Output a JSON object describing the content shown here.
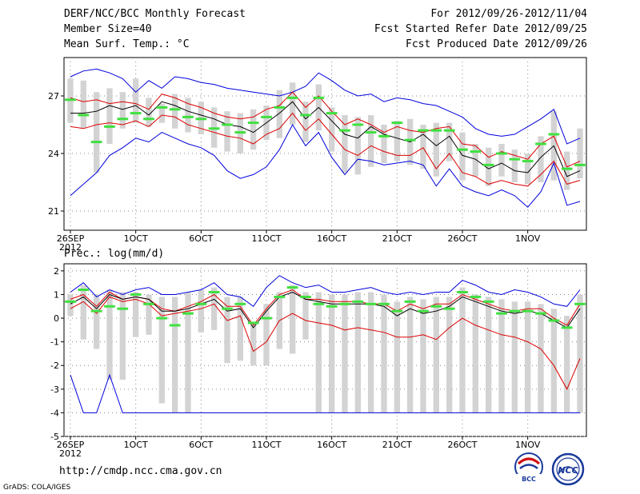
{
  "header": {
    "title": "DERF/NCC/BCC Monthly Forecast",
    "member_size": "Member Size=40",
    "variable": "Mean Surf. Temp.: °C",
    "period": "For 2012/09/26-2012/11/04",
    "started": "Fcst Started Refer Date 2012/09/25",
    "produced": "Fcst Produced Date 2012/09/26"
  },
  "footer": {
    "url": "http://cmdp.ncc.cma.gov.cn",
    "credit": "GrADS: COLA/IGES",
    "logo_left_text": "BCC",
    "logo_right_text": "NCC"
  },
  "chart_data": [
    {
      "type": "ensemble-boxplot",
      "title": "Mean Surf. Temp.: °C",
      "ylim": [
        20,
        29
      ],
      "yticks": [
        21,
        24,
        27
      ],
      "x_ticks": [
        {
          "day": 0,
          "label": "26SEP",
          "sub": "2012"
        },
        {
          "day": 5,
          "label": "1OCT"
        },
        {
          "day": 10,
          "label": "6OCT"
        },
        {
          "day": 15,
          "label": "11OCT"
        },
        {
          "day": 20,
          "label": "16OCT"
        },
        {
          "day": 25,
          "label": "21OCT"
        },
        {
          "day": 30,
          "label": "26OCT"
        },
        {
          "day": 35,
          "label": "1NOV"
        }
      ],
      "series": [
        {
          "name": "max",
          "color": "#0000dd",
          "values": [
            28.0,
            28.3,
            28.4,
            28.2,
            27.9,
            27.2,
            27.8,
            27.4,
            28.0,
            27.9,
            27.7,
            27.6,
            27.4,
            27.3,
            27.2,
            27.1,
            27.0,
            27.2,
            27.5,
            28.2,
            27.8,
            27.3,
            27.0,
            27.1,
            26.7,
            26.9,
            26.8,
            26.6,
            26.5,
            26.2,
            25.9,
            25.3,
            25.0,
            24.9,
            25.0,
            25.4,
            25.8,
            26.3,
            24.5,
            24.8
          ]
        },
        {
          "name": "upper",
          "color": "#dd0000",
          "values": [
            26.9,
            26.7,
            26.8,
            26.6,
            26.7,
            26.6,
            26.3,
            27.1,
            26.9,
            26.6,
            26.4,
            26.1,
            25.9,
            25.8,
            25.9,
            26.3,
            26.5,
            27.2,
            26.4,
            27.0,
            26.2,
            25.5,
            25.8,
            25.5,
            25.1,
            25.4,
            25.2,
            25.1,
            25.3,
            25.4,
            24.5,
            24.4,
            23.8,
            24.1,
            23.9,
            23.7,
            24.5,
            24.9,
            23.3,
            23.6
          ]
        },
        {
          "name": "mean",
          "color": "#000000",
          "values": [
            26.1,
            26.1,
            26.2,
            26.5,
            26.3,
            26.5,
            26.0,
            26.7,
            26.5,
            26.2,
            26.0,
            25.8,
            25.5,
            25.4,
            25.1,
            25.6,
            26.1,
            26.7,
            25.8,
            26.4,
            25.7,
            25.0,
            24.8,
            25.4,
            25.0,
            24.8,
            24.6,
            25.0,
            24.4,
            24.9,
            23.9,
            23.7,
            23.2,
            23.5,
            23.1,
            23.0,
            23.8,
            24.4,
            22.8,
            23.1
          ]
        },
        {
          "name": "lower",
          "color": "#dd0000",
          "values": [
            25.4,
            25.3,
            25.5,
            25.6,
            25.5,
            25.7,
            25.4,
            26.0,
            25.9,
            25.5,
            25.3,
            25.1,
            24.9,
            24.8,
            24.5,
            25.0,
            25.3,
            26.1,
            25.2,
            25.8,
            25.0,
            24.2,
            23.9,
            24.4,
            24.1,
            23.9,
            23.9,
            24.3,
            23.2,
            24.0,
            23.0,
            22.8,
            22.4,
            22.6,
            22.4,
            22.3,
            22.9,
            23.6,
            22.4,
            22.6
          ]
        },
        {
          "name": "min",
          "color": "#0000dd",
          "values": [
            21.8,
            22.4,
            23.0,
            23.9,
            24.3,
            24.8,
            24.6,
            25.1,
            24.8,
            24.5,
            24.3,
            23.9,
            23.1,
            22.7,
            22.9,
            23.3,
            24.2,
            25.5,
            24.4,
            25.1,
            23.8,
            22.9,
            23.7,
            23.6,
            23.4,
            23.5,
            23.6,
            23.4,
            22.3,
            23.2,
            22.3,
            22.0,
            21.8,
            22.1,
            21.8,
            21.2,
            22.0,
            23.5,
            21.3,
            21.5
          ]
        }
      ],
      "boxes": {
        "top": [
          27.9,
          27.8,
          27.2,
          27.4,
          27.2,
          27.9,
          26.9,
          26.6,
          27.1,
          26.9,
          26.7,
          26.4,
          26.2,
          26.1,
          26.3,
          26.5,
          27.3,
          27.7,
          26.7,
          27.6,
          26.4,
          26.0,
          25.9,
          26.0,
          25.5,
          25.7,
          25.8,
          25.5,
          25.6,
          25.6,
          25.1,
          24.5,
          24.3,
          24.5,
          24.2,
          24.0,
          24.9,
          26.2,
          24.1,
          25.3
        ],
        "bottom": [
          25.6,
          25.3,
          23.0,
          24.5,
          25.3,
          25.6,
          25.4,
          25.6,
          25.3,
          25.1,
          25.0,
          24.3,
          24.1,
          24.0,
          24.2,
          24.7,
          24.8,
          25.5,
          24.6,
          25.2,
          24.1,
          23.0,
          22.9,
          23.3,
          23.5,
          23.6,
          23.4,
          23.2,
          22.8,
          23.6,
          22.6,
          22.8,
          22.3,
          22.8,
          22.5,
          22.4,
          22.5,
          22.6,
          22.1,
          22.7
        ],
        "median": [
          26.8,
          26.0,
          24.6,
          25.4,
          25.8,
          26.1,
          25.8,
          26.4,
          26.3,
          25.9,
          25.8,
          25.3,
          25.5,
          25.1,
          25.6,
          25.9,
          26.4,
          26.9,
          26.0,
          26.9,
          26.1,
          25.2,
          25.5,
          25.1,
          24.9,
          25.6,
          24.7,
          25.2,
          25.2,
          25.2,
          24.2,
          24.1,
          23.4,
          24.0,
          23.7,
          23.6,
          24.5,
          25.0,
          23.2,
          23.4
        ]
      }
    },
    {
      "type": "ensemble-boxplot",
      "title": "Prec.: log(mm/d)",
      "ylim": [
        -5,
        2.3
      ],
      "yticks": [
        -5,
        -4,
        -3,
        -2,
        -1,
        0,
        1,
        2
      ],
      "x_ticks": [
        {
          "day": 0,
          "label": "26SEP",
          "sub": "2012"
        },
        {
          "day": 5,
          "label": "1OCT"
        },
        {
          "day": 10,
          "label": "6OCT"
        },
        {
          "day": 15,
          "label": "11OCT"
        },
        {
          "day": 20,
          "label": "16OCT"
        },
        {
          "day": 25,
          "label": "21OCT"
        },
        {
          "day": 30,
          "label": "26OCT"
        },
        {
          "day": 35,
          "label": "1NOV"
        }
      ],
      "series": [
        {
          "name": "max",
          "color": "#0000dd",
          "values": [
            1.1,
            1.5,
            0.9,
            1.2,
            1.0,
            1.2,
            1.3,
            1.0,
            1.0,
            1.1,
            1.2,
            1.5,
            1.0,
            0.9,
            0.5,
            1.3,
            1.8,
            1.5,
            1.3,
            1.4,
            1.1,
            1.1,
            1.2,
            1.3,
            1.1,
            1.0,
            1.1,
            1.0,
            1.1,
            1.1,
            1.6,
            1.4,
            1.1,
            1.0,
            1.2,
            1.1,
            0.9,
            0.6,
            0.5,
            1.2
          ]
        },
        {
          "name": "upper",
          "color": "#dd0000",
          "values": [
            0.8,
            1.0,
            0.5,
            1.1,
            0.8,
            0.9,
            0.8,
            0.4,
            0.3,
            0.5,
            0.7,
            1.0,
            0.5,
            0.5,
            -0.3,
            0.4,
            1.0,
            1.2,
            0.8,
            0.8,
            0.7,
            0.7,
            0.7,
            0.6,
            0.6,
            0.3,
            0.6,
            0.4,
            0.6,
            0.6,
            1.0,
            0.8,
            0.6,
            0.4,
            0.3,
            0.4,
            0.4,
            0.0,
            -0.3,
            0.6
          ]
        },
        {
          "name": "mean",
          "color": "#000000",
          "values": [
            0.6,
            0.9,
            0.4,
            1.0,
            0.8,
            0.9,
            0.8,
            0.3,
            0.3,
            0.4,
            0.6,
            0.8,
            0.3,
            0.4,
            -0.4,
            0.3,
            0.9,
            1.1,
            0.8,
            0.7,
            0.6,
            0.6,
            0.6,
            0.6,
            0.5,
            0.1,
            0.4,
            0.2,
            0.3,
            0.5,
            0.9,
            0.7,
            0.5,
            0.3,
            0.2,
            0.3,
            0.2,
            -0.1,
            -0.4,
            0.4
          ]
        },
        {
          "name": "lower",
          "color": "#dd0000",
          "values": [
            0.4,
            0.7,
            0.2,
            0.9,
            0.7,
            0.8,
            0.6,
            0.1,
            0.2,
            0.3,
            0.4,
            0.6,
            -0.1,
            0.1,
            -1.4,
            -1.0,
            -0.1,
            0.2,
            -0.1,
            -0.2,
            -0.3,
            -0.5,
            -0.4,
            -0.5,
            -0.6,
            -0.8,
            -0.8,
            -0.7,
            -0.9,
            -0.4,
            0.0,
            -0.3,
            -0.5,
            -0.7,
            -0.8,
            -1.0,
            -1.3,
            -2.0,
            -3.0,
            -1.7
          ]
        },
        {
          "name": "min",
          "color": "#0000dd",
          "values": [
            -2.4,
            -4.0,
            -4.0,
            -2.4,
            -4.0,
            -4.0,
            -4.0,
            -4.0,
            -4.0,
            -4.0,
            -4.0,
            -4.0,
            -4.0,
            -4.0,
            -4.0,
            -4.0,
            -4.0,
            -4.0,
            -4.0,
            -4.0,
            -4.0,
            -4.0,
            -4.0,
            -4.0,
            -4.0,
            -4.0,
            -4.0,
            -4.0,
            -4.0,
            -4.0,
            -4.0,
            -4.0,
            -4.0,
            -4.0,
            -4.0,
            -4.0,
            -4.0,
            -4.0,
            -4.0,
            -4.0
          ]
        }
      ],
      "boxes": {
        "top": [
          1.0,
          1.4,
          1.0,
          1.2,
          1.1,
          1.1,
          1.0,
          0.9,
          0.9,
          1.1,
          1.2,
          1.3,
          0.9,
          0.9,
          -0.3,
          0.6,
          1.1,
          1.4,
          1.1,
          1.1,
          1.0,
          1.0,
          1.1,
          1.1,
          1.0,
          0.7,
          0.9,
          0.8,
          0.9,
          0.9,
          1.3,
          1.0,
          0.9,
          0.8,
          0.7,
          0.7,
          0.6,
          0.4,
          0.1,
          1.0
        ],
        "bottom": [
          0.1,
          -0.9,
          -1.3,
          -2.6,
          -2.6,
          -0.8,
          -0.7,
          -3.6,
          -4.0,
          -4.0,
          -0.6,
          -0.5,
          -1.9,
          -1.8,
          -2.0,
          -2.0,
          -1.3,
          -1.5,
          -0.9,
          -4.0,
          -4.0,
          -4.0,
          -4.0,
          -4.0,
          -4.0,
          -4.0,
          -4.0,
          -4.0,
          -4.0,
          -4.0,
          -4.0,
          -4.0,
          -4.0,
          -4.0,
          -4.0,
          -4.0,
          -4.0,
          -4.0,
          -4.0,
          -4.0
        ],
        "median": [
          0.7,
          1.2,
          0.3,
          0.5,
          0.4,
          1.0,
          0.6,
          0.0,
          -0.3,
          0.2,
          0.6,
          1.1,
          0.4,
          0.6,
          -0.2,
          0.0,
          0.9,
          1.3,
          0.9,
          0.6,
          0.5,
          0.6,
          0.7,
          0.6,
          0.6,
          0.3,
          0.7,
          0.3,
          0.5,
          0.4,
          1.1,
          0.9,
          0.7,
          0.2,
          0.3,
          0.3,
          0.2,
          -0.1,
          -0.4,
          0.6
        ]
      }
    }
  ]
}
